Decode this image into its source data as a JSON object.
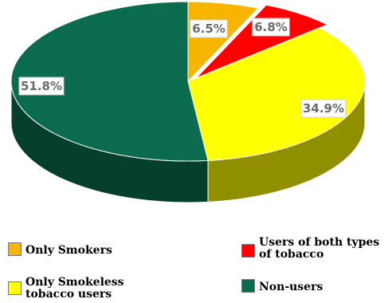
{
  "chart_data": {
    "type": "pie",
    "title": "",
    "style": "3d",
    "slices": [
      {
        "label": "Only Smokers",
        "value": 6.5,
        "display": "6.5%",
        "color": "#f7b500",
        "side_color": "#b98600"
      },
      {
        "label": "Users of both types of tobacco",
        "value": 6.8,
        "display": "6.8%",
        "color": "#ff0000",
        "side_color": "#b00000"
      },
      {
        "label": "Only Smokeless tobacco users",
        "value": 34.9,
        "display": "34.9%",
        "color": "#ffff00",
        "side_color": "#8f8f00"
      },
      {
        "label": "Non-users",
        "value": 51.8,
        "display": "51.8%",
        "color": "#0b6b4e",
        "side_color": "#05402d"
      }
    ],
    "legend": {
      "placement": "bottom",
      "items": [
        {
          "line1": "Only Smokers",
          "line2": "",
          "color": "#f7b500"
        },
        {
          "line1": "Users of both types",
          "line2": "of tobacco",
          "color": "#ff0000"
        },
        {
          "line1": "Only Smokeless",
          "line2": "tobacco users",
          "color": "#ffff00"
        },
        {
          "line1": "Non-users",
          "line2": "",
          "color": "#0b6b4e"
        }
      ]
    }
  }
}
